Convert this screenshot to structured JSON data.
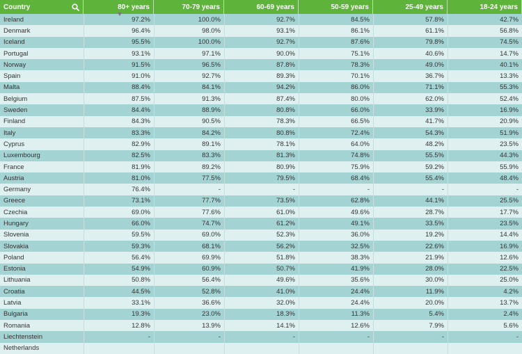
{
  "header": {
    "country": "Country",
    "search_icon": "search-icon",
    "sort_icon": "sort-down-icon",
    "columns": [
      "80+ years",
      "70-79 years",
      "60-69 years",
      "50-59 years",
      "25-49 years",
      "18-24 years"
    ]
  },
  "colors": {
    "header_bg": "#5eb33a",
    "row_dark": "#a3d3d3",
    "row_light": "#dff0f0"
  },
  "rows": [
    {
      "country": "Ireland",
      "values": [
        "97.2%",
        "100.0%",
        "92.7%",
        "84.5%",
        "57.8%",
        "42.7%"
      ]
    },
    {
      "country": "Denmark",
      "values": [
        "96.4%",
        "98.0%",
        "93.1%",
        "86.1%",
        "61.1%",
        "56.8%"
      ]
    },
    {
      "country": "Iceland",
      "values": [
        "95.5%",
        "100.0%",
        "92.7%",
        "87.6%",
        "79.8%",
        "74.5%"
      ]
    },
    {
      "country": "Portugal",
      "values": [
        "93.1%",
        "97.1%",
        "90.0%",
        "75.1%",
        "40.6%",
        "14.7%"
      ]
    },
    {
      "country": "Norway",
      "values": [
        "91.5%",
        "96.5%",
        "87.8%",
        "78.3%",
        "49.0%",
        "40.1%"
      ]
    },
    {
      "country": "Spain",
      "values": [
        "91.0%",
        "92.7%",
        "89.3%",
        "70.1%",
        "36.7%",
        "13.3%"
      ]
    },
    {
      "country": "Malta",
      "values": [
        "88.4%",
        "84.1%",
        "94.2%",
        "86.0%",
        "71.1%",
        "55.3%"
      ]
    },
    {
      "country": "Belgium",
      "values": [
        "87.5%",
        "91.3%",
        "87.4%",
        "80.0%",
        "62.0%",
        "52.4%"
      ]
    },
    {
      "country": "Sweden",
      "values": [
        "84.4%",
        "88.9%",
        "80.8%",
        "66.0%",
        "33.9%",
        "16.9%"
      ]
    },
    {
      "country": "Finland",
      "values": [
        "84.3%",
        "90.5%",
        "78.3%",
        "66.5%",
        "41.7%",
        "20.9%"
      ]
    },
    {
      "country": "Italy",
      "values": [
        "83.3%",
        "84.2%",
        "80.8%",
        "72.4%",
        "54.3%",
        "51.9%"
      ]
    },
    {
      "country": "Cyprus",
      "values": [
        "82.9%",
        "89.1%",
        "78.1%",
        "64.0%",
        "48.2%",
        "23.5%"
      ]
    },
    {
      "country": "Luxembourg",
      "values": [
        "82.5%",
        "83.3%",
        "81.3%",
        "74.8%",
        "55.5%",
        "44.3%"
      ]
    },
    {
      "country": "France",
      "values": [
        "81.9%",
        "89.2%",
        "80.9%",
        "75.9%",
        "59.2%",
        "55.9%"
      ]
    },
    {
      "country": "Austria",
      "values": [
        "81.0%",
        "77.5%",
        "79.5%",
        "68.4%",
        "55.4%",
        "48.4%"
      ]
    },
    {
      "country": "Germany",
      "values": [
        "76.4%",
        "-",
        "-",
        "-",
        "-",
        "-"
      ]
    },
    {
      "country": "Greece",
      "values": [
        "73.1%",
        "77.7%",
        "73.5%",
        "62.8%",
        "44.1%",
        "25.5%"
      ]
    },
    {
      "country": "Czechia",
      "values": [
        "69.0%",
        "77.6%",
        "61.0%",
        "49.6%",
        "28.7%",
        "17.7%"
      ]
    },
    {
      "country": "Hungary",
      "values": [
        "66.0%",
        "74.7%",
        "61.2%",
        "49.1%",
        "33.5%",
        "23.5%"
      ]
    },
    {
      "country": "Slovenia",
      "values": [
        "59.5%",
        "69.0%",
        "52.3%",
        "36.0%",
        "19.2%",
        "14.4%"
      ]
    },
    {
      "country": "Slovakia",
      "values": [
        "59.3%",
        "68.1%",
        "56.2%",
        "32.5%",
        "22.6%",
        "16.9%"
      ]
    },
    {
      "country": "Poland",
      "values": [
        "56.4%",
        "69.9%",
        "51.8%",
        "38.3%",
        "21.9%",
        "12.6%"
      ]
    },
    {
      "country": "Estonia",
      "values": [
        "54.9%",
        "60.9%",
        "50.7%",
        "41.9%",
        "28.0%",
        "22.5%"
      ]
    },
    {
      "country": "Lithuania",
      "values": [
        "50.8%",
        "56.4%",
        "49.6%",
        "35.6%",
        "30.0%",
        "25.0%"
      ]
    },
    {
      "country": "Croatia",
      "values": [
        "44.5%",
        "52.8%",
        "41.0%",
        "24.4%",
        "11.9%",
        "4.2%"
      ]
    },
    {
      "country": "Latvia",
      "values": [
        "33.1%",
        "36.6%",
        "32.0%",
        "24.4%",
        "20.0%",
        "13.7%"
      ]
    },
    {
      "country": "Bulgaria",
      "values": [
        "19.3%",
        "23.0%",
        "18.3%",
        "11.3%",
        "5.4%",
        "2.4%"
      ]
    },
    {
      "country": "Romania",
      "values": [
        "12.8%",
        "13.9%",
        "14.1%",
        "12.6%",
        "7.9%",
        "5.6%"
      ]
    },
    {
      "country": "Liechtenstein",
      "values": [
        "-",
        "-",
        "-",
        "-",
        "-",
        "-"
      ]
    },
    {
      "country": "Netherlands",
      "values": [
        "",
        "",
        "",
        "",
        "",
        ""
      ]
    }
  ]
}
